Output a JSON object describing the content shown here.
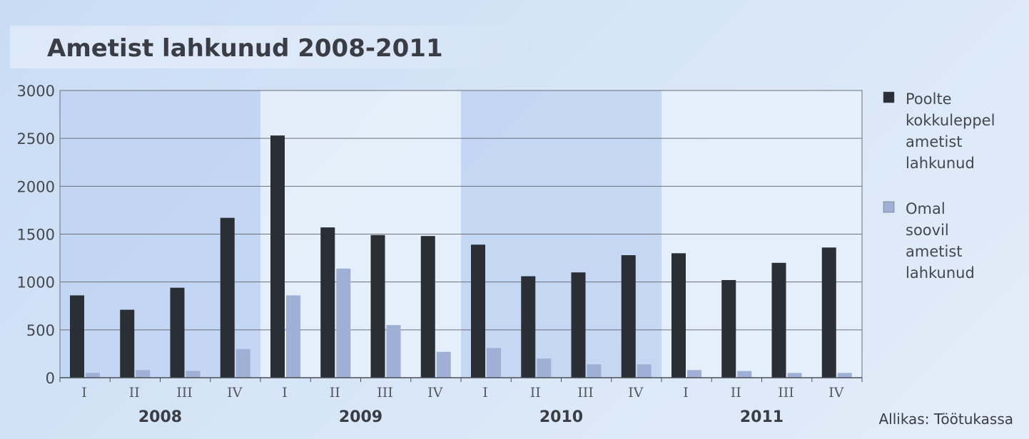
{
  "chart_data": {
    "type": "bar",
    "title": "Ametist lahkunud 2008-2011",
    "categories": [
      "I",
      "II",
      "III",
      "IV",
      "I",
      "II",
      "III",
      "IV",
      "I",
      "II",
      "III",
      "IV",
      "I",
      "II",
      "III",
      "IV"
    ],
    "groups": [
      {
        "label": "2008",
        "span": 4
      },
      {
        "label": "2009",
        "span": 4
      },
      {
        "label": "2010",
        "span": 4
      },
      {
        "label": "2011",
        "span": 4
      }
    ],
    "series": [
      {
        "name": "Poolte kokkuleppel ametist lahkunud",
        "legend_lines": [
          "Poolte",
          "kokkuleppel",
          "ametist",
          "lahkunud"
        ],
        "color": "#2a2e35",
        "values": [
          860,
          710,
          940,
          1670,
          2530,
          1570,
          1490,
          1480,
          1390,
          1060,
          1100,
          1280,
          1300,
          1020,
          1200,
          1360
        ]
      },
      {
        "name": "Omal soovil ametist lahkunud",
        "legend_lines": [
          "Omal",
          "soovil",
          "ametist",
          "lahkunud"
        ],
        "color": "#9eb0d6",
        "values": [
          50,
          80,
          70,
          300,
          860,
          1140,
          550,
          270,
          310,
          200,
          140,
          140,
          80,
          70,
          50,
          50
        ]
      }
    ],
    "ylim": [
      0,
      3000
    ],
    "yticks": [
      "0",
      "500",
      "1000",
      "1500",
      "2000",
      "2500",
      "3000"
    ],
    "grid": true,
    "legend_position": "right",
    "source": "Allikas: Töötukassa"
  }
}
